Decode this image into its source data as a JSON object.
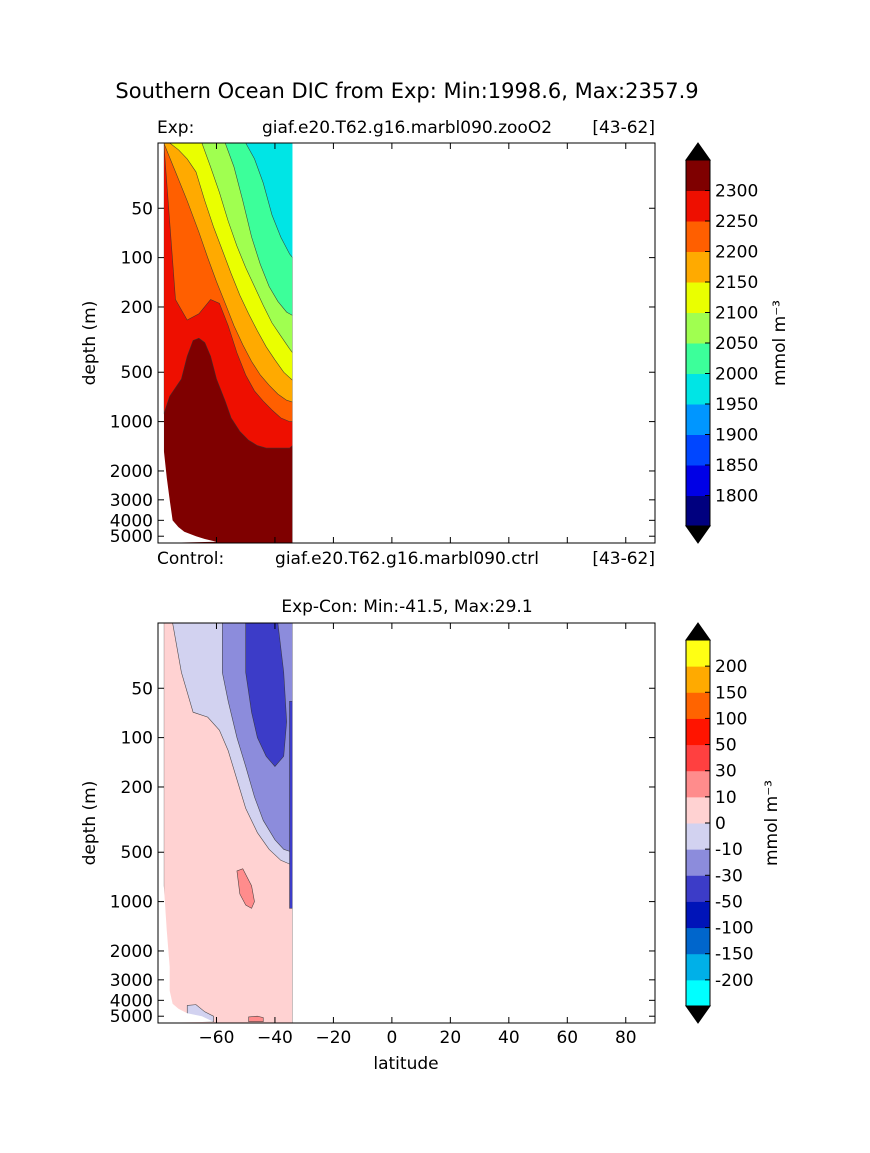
{
  "figure": {
    "title": "Southern Ocean DIC from Exp: Min:1998.6, Max:2357.9"
  },
  "chart_data": [
    {
      "type": "heatmap",
      "name": "exp-section",
      "title_left": "Exp:",
      "title_center": "giaf.e20.T62.g16.marbl090.zooO2",
      "title_right": "[43-62]",
      "bottom_left": "Control:",
      "bottom_center": "giaf.e20.T62.g16.marbl090.ctrl",
      "bottom_right": "[43-62]",
      "xlabel": "",
      "ylabel": "depth (m)",
      "xlim": [
        -80,
        90
      ],
      "ylim": [
        5500,
        20
      ],
      "yscale": "log",
      "xticks": [
        -60,
        -40,
        -20,
        0,
        20,
        40,
        60,
        80
      ],
      "yticks": [
        50,
        100,
        200,
        500,
        1000,
        2000,
        3000,
        4000,
        5000
      ],
      "yticklabels": [
        "50",
        "100",
        "200",
        "500",
        "1000",
        "2000",
        "3000",
        "4000",
        "5000"
      ],
      "colorbar": {
        "label": "mmol m⁻³",
        "levels": [
          1750,
          1800,
          1850,
          1900,
          1950,
          2000,
          2050,
          2100,
          2150,
          2200,
          2250,
          2300,
          2350
        ],
        "colors": [
          "#00007f",
          "#0000e6",
          "#0046ff",
          "#0096ff",
          "#00e5e5",
          "#3cff9a",
          "#a0ff50",
          "#eaff00",
          "#ffaa00",
          "#ff5f00",
          "#ee0f00",
          "#7f0000"
        ],
        "extend_low_color": "#000000",
        "extend_high_color": "#000000",
        "ticklabels": [
          "1800",
          "1850",
          "1900",
          "1950",
          "2000",
          "2050",
          "2100",
          "2150",
          "2200",
          "2250",
          "2300"
        ],
        "tickvalues": [
          1800,
          1850,
          1900,
          1950,
          2000,
          2050,
          2100,
          2150,
          2200,
          2250,
          2300
        ]
      },
      "data_note": "DIC field covers latitudes about -78 to -34; values increase southward and with depth",
      "regions": [
        {
          "value_band": "2300+",
          "color_index": 11,
          "boundary_lat_top": [
            -78,
            -78,
            -76,
            -72,
            -70,
            -68,
            -66,
            -64,
            -62,
            -60,
            -57,
            -55,
            -52,
            -49,
            -46,
            -43,
            -40,
            -37,
            -35,
            -34
          ],
          "boundary_depth_top": [
            5100,
            900,
            700,
            550,
            400,
            320,
            310,
            330,
            400,
            550,
            750,
            950,
            1150,
            1300,
            1400,
            1450,
            1450,
            1450,
            1450,
            1400
          ]
        },
        {
          "value_band": "2250-2300",
          "color_index": 10,
          "boundary_lat_top": [
            -78,
            -74,
            -70,
            -66,
            -62,
            -59,
            -56,
            -53,
            -50,
            -47,
            -44,
            -41,
            -38,
            -35,
            -34
          ],
          "boundary_depth_top": [
            20,
            180,
            240,
            220,
            180,
            190,
            260,
            380,
            520,
            650,
            750,
            850,
            950,
            1000,
            1000
          ]
        },
        {
          "value_band": "2200-2250",
          "color_index": 9,
          "boundary_lat_top": [
            -78,
            -74,
            -70,
            -66,
            -63,
            -60,
            -57,
            -54,
            -51,
            -48,
            -45,
            -42,
            -39,
            -36,
            -34
          ],
          "boundary_depth_top": [
            20,
            30,
            45,
            70,
            100,
            140,
            190,
            260,
            340,
            430,
            520,
            600,
            680,
            740,
            760
          ]
        },
        {
          "value_band": "2150-2200",
          "color_index": 8,
          "boundary_lat_top": [
            -76,
            -73,
            -70,
            -67,
            -64,
            -61,
            -58,
            -55,
            -52,
            -49,
            -46,
            -43,
            -40,
            -37,
            -34
          ],
          "boundary_depth_top": [
            20,
            22,
            25,
            30,
            45,
            65,
            90,
            125,
            170,
            220,
            280,
            350,
            420,
            500,
            560
          ]
        },
        {
          "value_band": "2100-2150",
          "color_index": 7,
          "boundary_lat_top": [
            -65,
            -62,
            -59,
            -56,
            -53,
            -50,
            -47,
            -44,
            -41,
            -38,
            -35,
            -34
          ],
          "boundary_depth_top": [
            20,
            28,
            40,
            60,
            85,
            115,
            150,
            195,
            250,
            300,
            360,
            380
          ]
        },
        {
          "value_band": "2050-2100",
          "color_index": 6,
          "boundary_lat_top": [
            -57,
            -54,
            -51,
            -48,
            -45,
            -42,
            -39,
            -36,
            -34
          ],
          "boundary_depth_top": [
            20,
            28,
            45,
            75,
            110,
            150,
            185,
            215,
            225
          ]
        },
        {
          "value_band": "2000-2050",
          "color_index": 5,
          "boundary_lat_top": [
            -50,
            -47,
            -44,
            -41,
            -38,
            -35,
            -34
          ],
          "boundary_depth_top": [
            20,
            25,
            35,
            55,
            75,
            95,
            100
          ]
        }
      ]
    },
    {
      "type": "heatmap",
      "name": "diff-section",
      "title_center": "Exp-Con: Min:-41.5, Max:29.1",
      "xlabel": "latitude",
      "ylabel": "depth (m)",
      "xlim": [
        -80,
        90
      ],
      "ylim": [
        5500,
        20
      ],
      "yscale": "log",
      "xticks": [
        -60,
        -40,
        -20,
        0,
        20,
        40,
        60,
        80
      ],
      "xticklabels": [
        "−60",
        "−40",
        "−20",
        "0",
        "20",
        "40",
        "60",
        "80"
      ],
      "yticks": [
        50,
        100,
        200,
        500,
        1000,
        2000,
        3000,
        4000,
        5000
      ],
      "yticklabels": [
        "50",
        "100",
        "200",
        "500",
        "1000",
        "2000",
        "3000",
        "4000",
        "5000"
      ],
      "colorbar": {
        "label": "mmol m⁻³",
        "levels": [
          -250,
          -200,
          -150,
          -100,
          -50,
          -30,
          -10,
          0,
          10,
          30,
          50,
          100,
          150,
          200,
          250
        ],
        "colors": [
          "#00ffff",
          "#00b0e8",
          "#0066cc",
          "#0014b8",
          "#3c3cc8",
          "#8c8cdc",
          "#d2d2f0",
          "#ffd2d2",
          "#ff8c8c",
          "#ff4040",
          "#ff1400",
          "#ff6400",
          "#ffaa00",
          "#ffff14"
        ],
        "extend_low_color": "#000000",
        "extend_high_color": "#000000",
        "ticklabels": [
          "-200",
          "-150",
          "-100",
          "-50",
          "-30",
          "-10",
          "0",
          "10",
          "30",
          "50",
          "100",
          "150",
          "200"
        ],
        "tickvalues": [
          -200,
          -150,
          -100,
          -50,
          -30,
          -10,
          0,
          10,
          30,
          50,
          100,
          150,
          200
        ]
      }
    }
  ]
}
